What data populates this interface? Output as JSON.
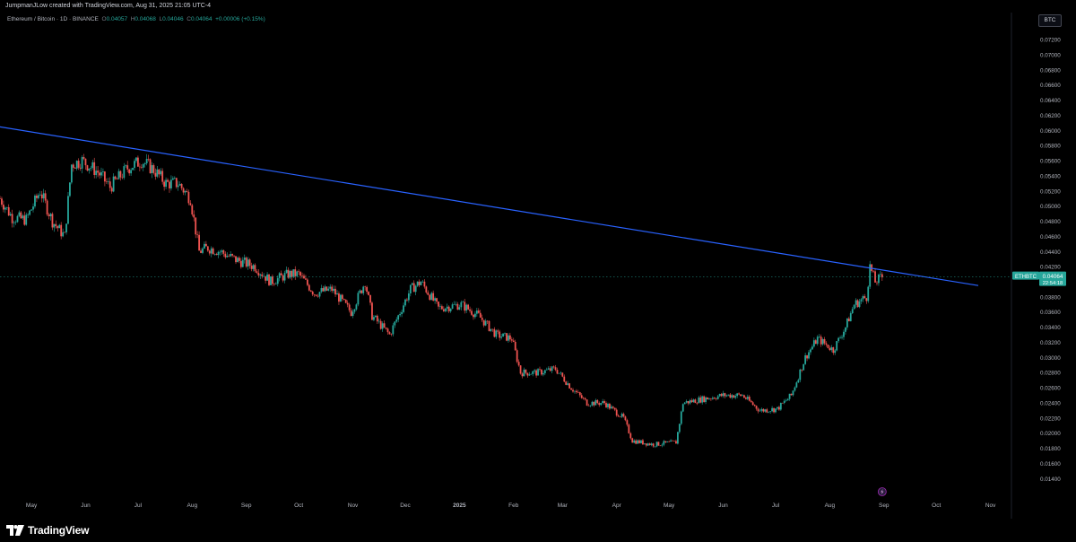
{
  "header": {
    "attribution": "JumpmanJLow created with TradingView.com, Aug 31, 2025 21:05 UTC-4"
  },
  "symbol_info": {
    "name": "Ethereum / Bitcoin · 1D · BINANCE",
    "open_label": "O",
    "open": "0.04057",
    "high_label": "H",
    "high": "0.04068",
    "low_label": "L",
    "low": "0.04046",
    "close_label": "C",
    "close": "0.04064",
    "change": "+0.00006 (+0.15%)"
  },
  "currency_button": "BTC",
  "price_tag": {
    "symbol": "ETHBTC",
    "price": "0.04064",
    "countdown": "22:54:18",
    "color": "#26a69a"
  },
  "footer": {
    "brand": "TradingView"
  },
  "colors": {
    "up": "#26a69a",
    "down": "#ef5350",
    "trendline": "#2962ff",
    "background": "#000000"
  },
  "chart_data": {
    "type": "candlestick",
    "y_axis_ticks": [
      "0.07200",
      "0.07000",
      "0.06800",
      "0.06600",
      "0.06400",
      "0.06200",
      "0.06000",
      "0.05800",
      "0.05600",
      "0.05400",
      "0.05200",
      "0.05000",
      "0.04800",
      "0.04600",
      "0.04400",
      "0.04200",
      "0.03800",
      "0.03600",
      "0.03400",
      "0.03200",
      "0.03000",
      "0.02800",
      "0.02600",
      "0.02400",
      "0.02200",
      "0.02000",
      "0.01800",
      "0.01600",
      "0.01400"
    ],
    "ylim": [
      0.013,
      0.074
    ],
    "x_axis_ticks": [
      "May",
      "Jun",
      "Jul",
      "Aug",
      "Sep",
      "Oct",
      "Nov",
      "Dec",
      "2025",
      "Feb",
      "Mar",
      "Apr",
      "May",
      "Jun",
      "Jul",
      "Aug",
      "Sep",
      "Oct",
      "Nov"
    ],
    "x_range": [
      "2024-04-13",
      "2025-11-13"
    ],
    "price_path": [
      [
        "2024-04-13",
        0.051
      ],
      [
        "2024-04-20",
        0.0485
      ],
      [
        "2024-04-28",
        0.0482
      ],
      [
        "2024-05-06",
        0.052
      ],
      [
        "2024-05-13",
        0.048
      ],
      [
        "2024-05-20",
        0.046
      ],
      [
        "2024-05-24",
        0.0555
      ],
      [
        "2024-05-30",
        0.056
      ],
      [
        "2024-06-08",
        0.0545
      ],
      [
        "2024-06-15",
        0.0525
      ],
      [
        "2024-06-25",
        0.055
      ],
      [
        "2024-07-03",
        0.056
      ],
      [
        "2024-07-10",
        0.0548
      ],
      [
        "2024-07-17",
        0.053
      ],
      [
        "2024-07-24",
        0.053
      ],
      [
        "2024-07-31",
        0.051
      ],
      [
        "2024-08-05",
        0.044
      ],
      [
        "2024-08-10",
        0.0445
      ],
      [
        "2024-08-17",
        0.044
      ],
      [
        "2024-08-25",
        0.043
      ],
      [
        "2024-09-06",
        0.042
      ],
      [
        "2024-09-15",
        0.04
      ],
      [
        "2024-09-25",
        0.041
      ],
      [
        "2024-10-01",
        0.041
      ],
      [
        "2024-10-10",
        0.0385
      ],
      [
        "2024-10-20",
        0.039
      ],
      [
        "2024-10-31",
        0.036
      ],
      [
        "2024-11-08",
        0.04
      ],
      [
        "2024-11-12",
        0.0355
      ],
      [
        "2024-11-22",
        0.033
      ],
      [
        "2024-12-04",
        0.039
      ],
      [
        "2024-12-10",
        0.04
      ],
      [
        "2024-12-20",
        0.0365
      ],
      [
        "2025-01-02",
        0.037
      ],
      [
        "2025-01-12",
        0.0355
      ],
      [
        "2025-01-22",
        0.033
      ],
      [
        "2025-01-31",
        0.0325
      ],
      [
        "2025-02-05",
        0.028
      ],
      [
        "2025-02-15",
        0.028
      ],
      [
        "2025-02-25",
        0.0285
      ],
      [
        "2025-03-06",
        0.026
      ],
      [
        "2025-03-15",
        0.024
      ],
      [
        "2025-03-25",
        0.024
      ],
      [
        "2025-04-05",
        0.022
      ],
      [
        "2025-04-10",
        0.019
      ],
      [
        "2025-04-22",
        0.0185
      ],
      [
        "2025-05-05",
        0.0188
      ],
      [
        "2025-05-09",
        0.024
      ],
      [
        "2025-05-20",
        0.0245
      ],
      [
        "2025-06-01",
        0.025
      ],
      [
        "2025-06-12",
        0.025
      ],
      [
        "2025-06-22",
        0.023
      ],
      [
        "2025-07-02",
        0.0232
      ],
      [
        "2025-07-10",
        0.025
      ],
      [
        "2025-07-18",
        0.03
      ],
      [
        "2025-07-25",
        0.0325
      ],
      [
        "2025-08-03",
        0.031
      ],
      [
        "2025-08-10",
        0.034
      ],
      [
        "2025-08-15",
        0.037
      ],
      [
        "2025-08-22",
        0.038
      ],
      [
        "2025-08-24",
        0.042
      ],
      [
        "2025-08-27",
        0.04
      ],
      [
        "2025-08-31",
        0.04064
      ]
    ],
    "trendline": [
      [
        "2024-04-12",
        0.0605
      ],
      [
        "2025-10-25",
        0.0395
      ]
    ],
    "last_price": 0.04064
  }
}
